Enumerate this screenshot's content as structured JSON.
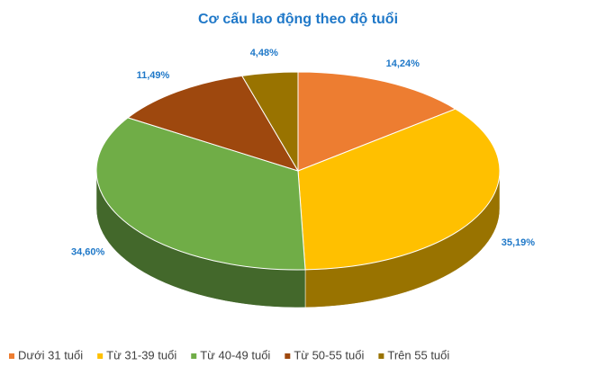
{
  "chart_data": {
    "type": "pie",
    "title": "Cơ cấu lao động theo độ tuổi",
    "categories": [
      "Dưới 31 tuổi",
      "Từ 31-39 tuổi",
      "Từ 40-49 tuổi",
      "Từ 50-55 tuổi",
      "Trên 55 tuổi"
    ],
    "values": [
      14.24,
      35.19,
      34.6,
      11.49,
      4.48
    ],
    "value_labels": [
      "14,24%",
      "35,19%",
      "34,60%",
      "11,49%",
      "4,48%"
    ],
    "colors": [
      "#ed7d31",
      "#ffc000",
      "#70ad47",
      "#9e480e",
      "#997300"
    ],
    "legend": "bottom"
  }
}
